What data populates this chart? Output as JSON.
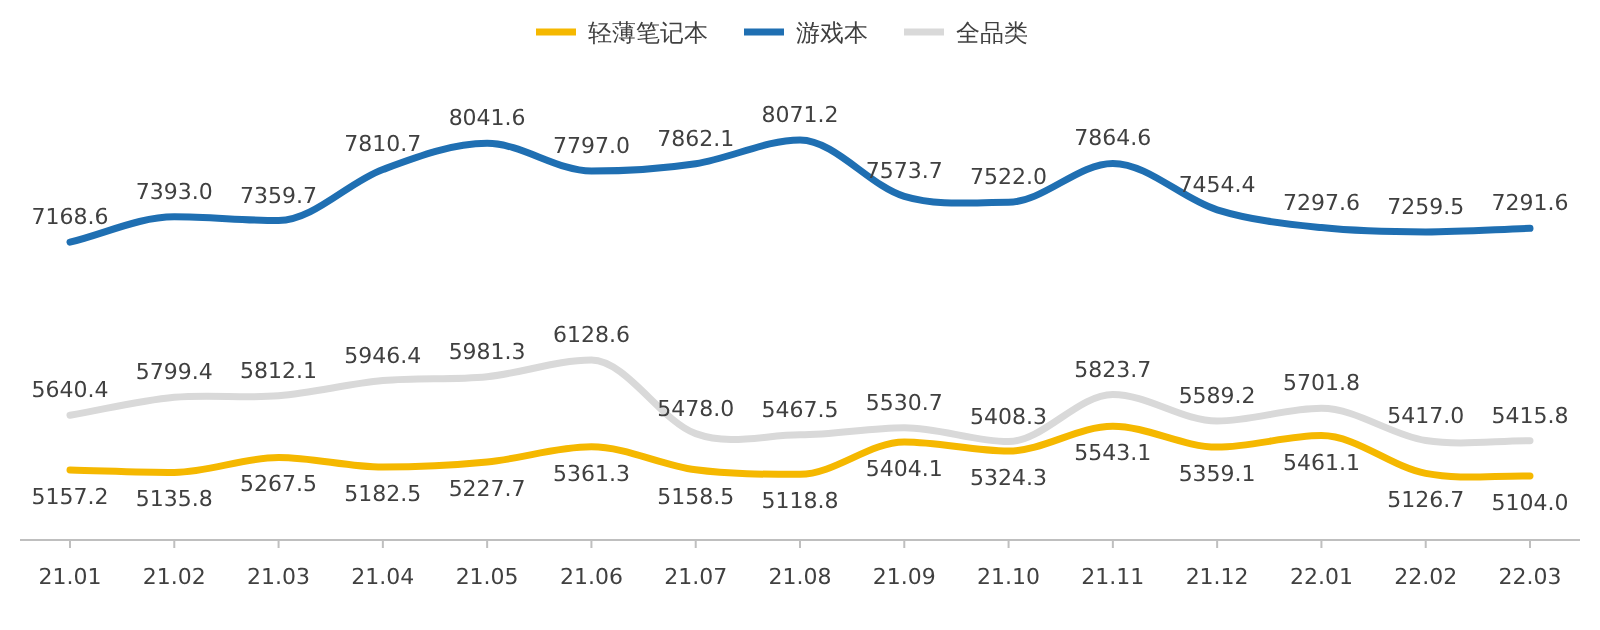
{
  "chart_data": {
    "type": "line",
    "categories": [
      "21.01",
      "21.02",
      "21.03",
      "21.04",
      "21.05",
      "21.06",
      "21.07",
      "21.08",
      "21.09",
      "21.10",
      "21.11",
      "21.12",
      "22.01",
      "22.02",
      "22.03"
    ],
    "series": [
      {
        "name": "轻薄笔记本",
        "color": "#f5b800",
        "values": [
          5157.2,
          5135.8,
          5267.5,
          5182.5,
          5227.7,
          5361.3,
          5158.5,
          5118.8,
          5404.1,
          5324.3,
          5543.1,
          5359.1,
          5461.1,
          5126.7,
          5104.0
        ],
        "value_labels": [
          "5157.2",
          "5135.8",
          "5267.5",
          "5182.5",
          "5227.7",
          "5361.3",
          "5158.5",
          "5118.8",
          "5404.1",
          "5324.3",
          "5543.1",
          "5359.1",
          "5461.1",
          "5126.7",
          "5104.0"
        ]
      },
      {
        "name": "游戏本",
        "color": "#1f6fb2",
        "values": [
          7168.6,
          7393.0,
          7359.7,
          7810.7,
          8041.6,
          7797.0,
          7862.1,
          8071.2,
          7573.7,
          7522.0,
          7864.6,
          7454.4,
          7297.6,
          7259.5,
          7291.6
        ],
        "value_labels": [
          "7168.6",
          "7393.0",
          "7359.7",
          "7810.7",
          "8041.6",
          "7797.0",
          "7862.1",
          "8071.2",
          "7573.7",
          "7522.0",
          "7864.6",
          "7454.4",
          "7297.6",
          "7259.5",
          "7291.6"
        ]
      },
      {
        "name": "全品类",
        "color": "#d9d9d9",
        "values": [
          5640.4,
          5799.4,
          5812.1,
          5946.4,
          5981.3,
          6128.6,
          5478.0,
          5467.5,
          5530.7,
          5408.3,
          5823.7,
          5589.2,
          5701.8,
          5417.0,
          5415.8
        ],
        "value_labels": [
          "5640.4",
          "5799.4",
          "5812.1",
          "5946.4",
          "5981.3",
          "6128.6",
          "5478.0",
          "5467.5",
          "5530.7",
          "5408.3",
          "5823.7",
          "5589.2",
          "5701.8",
          "5417.0",
          "5415.8"
        ]
      }
    ],
    "legend": "top",
    "grid": false,
    "marker": "none",
    "line_style": "solid"
  }
}
